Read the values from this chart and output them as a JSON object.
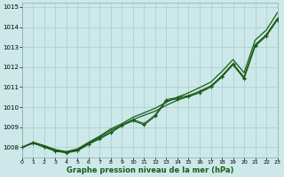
{
  "title": "Graphe pression niveau de la mer (hPa)",
  "bg_color": "#cce8e8",
  "grid_color": "#aacccc",
  "line_color": "#1a5c1a",
  "x_min": 0,
  "x_max": 23,
  "y_min": 1007.5,
  "y_max": 1015.2,
  "yticks": [
    1008,
    1009,
    1010,
    1011,
    1012,
    1013,
    1014,
    1015
  ],
  "xticks": [
    0,
    1,
    2,
    3,
    4,
    5,
    6,
    7,
    8,
    9,
    10,
    11,
    12,
    13,
    14,
    15,
    16,
    17,
    18,
    19,
    20,
    21,
    22,
    23
  ],
  "series_smooth_low": [
    1008.0,
    1008.2,
    1008.05,
    1007.85,
    1007.75,
    1007.88,
    1008.2,
    1008.5,
    1008.85,
    1009.1,
    1009.38,
    1009.6,
    1009.8,
    1010.1,
    1010.35,
    1010.55,
    1010.8,
    1011.05,
    1011.55,
    1012.15,
    1011.5,
    1013.1,
    1013.6,
    1014.42
  ],
  "series_smooth_high": [
    1008.0,
    1008.25,
    1008.08,
    1007.88,
    1007.78,
    1007.92,
    1008.25,
    1008.56,
    1008.92,
    1009.18,
    1009.5,
    1009.72,
    1009.95,
    1010.25,
    1010.5,
    1010.72,
    1010.98,
    1011.25,
    1011.78,
    1012.38,
    1011.72,
    1013.35,
    1013.85,
    1014.72
  ],
  "series_marker_low": [
    1008.0,
    1008.2,
    1008.0,
    1007.8,
    1007.72,
    1007.82,
    1008.15,
    1008.42,
    1008.72,
    1009.08,
    1009.32,
    1009.12,
    1009.55,
    1010.32,
    1010.42,
    1010.52,
    1010.72,
    1011.0,
    1011.5,
    1012.12,
    1011.42,
    1013.05,
    1013.55,
    1014.35
  ],
  "series_marker_high": [
    1008.0,
    1008.22,
    1008.02,
    1007.82,
    1007.74,
    1007.84,
    1008.17,
    1008.45,
    1008.75,
    1009.12,
    1009.38,
    1009.18,
    1009.62,
    1010.38,
    1010.48,
    1010.58,
    1010.78,
    1011.06,
    1011.56,
    1012.18,
    1011.48,
    1013.12,
    1013.62,
    1014.42
  ]
}
